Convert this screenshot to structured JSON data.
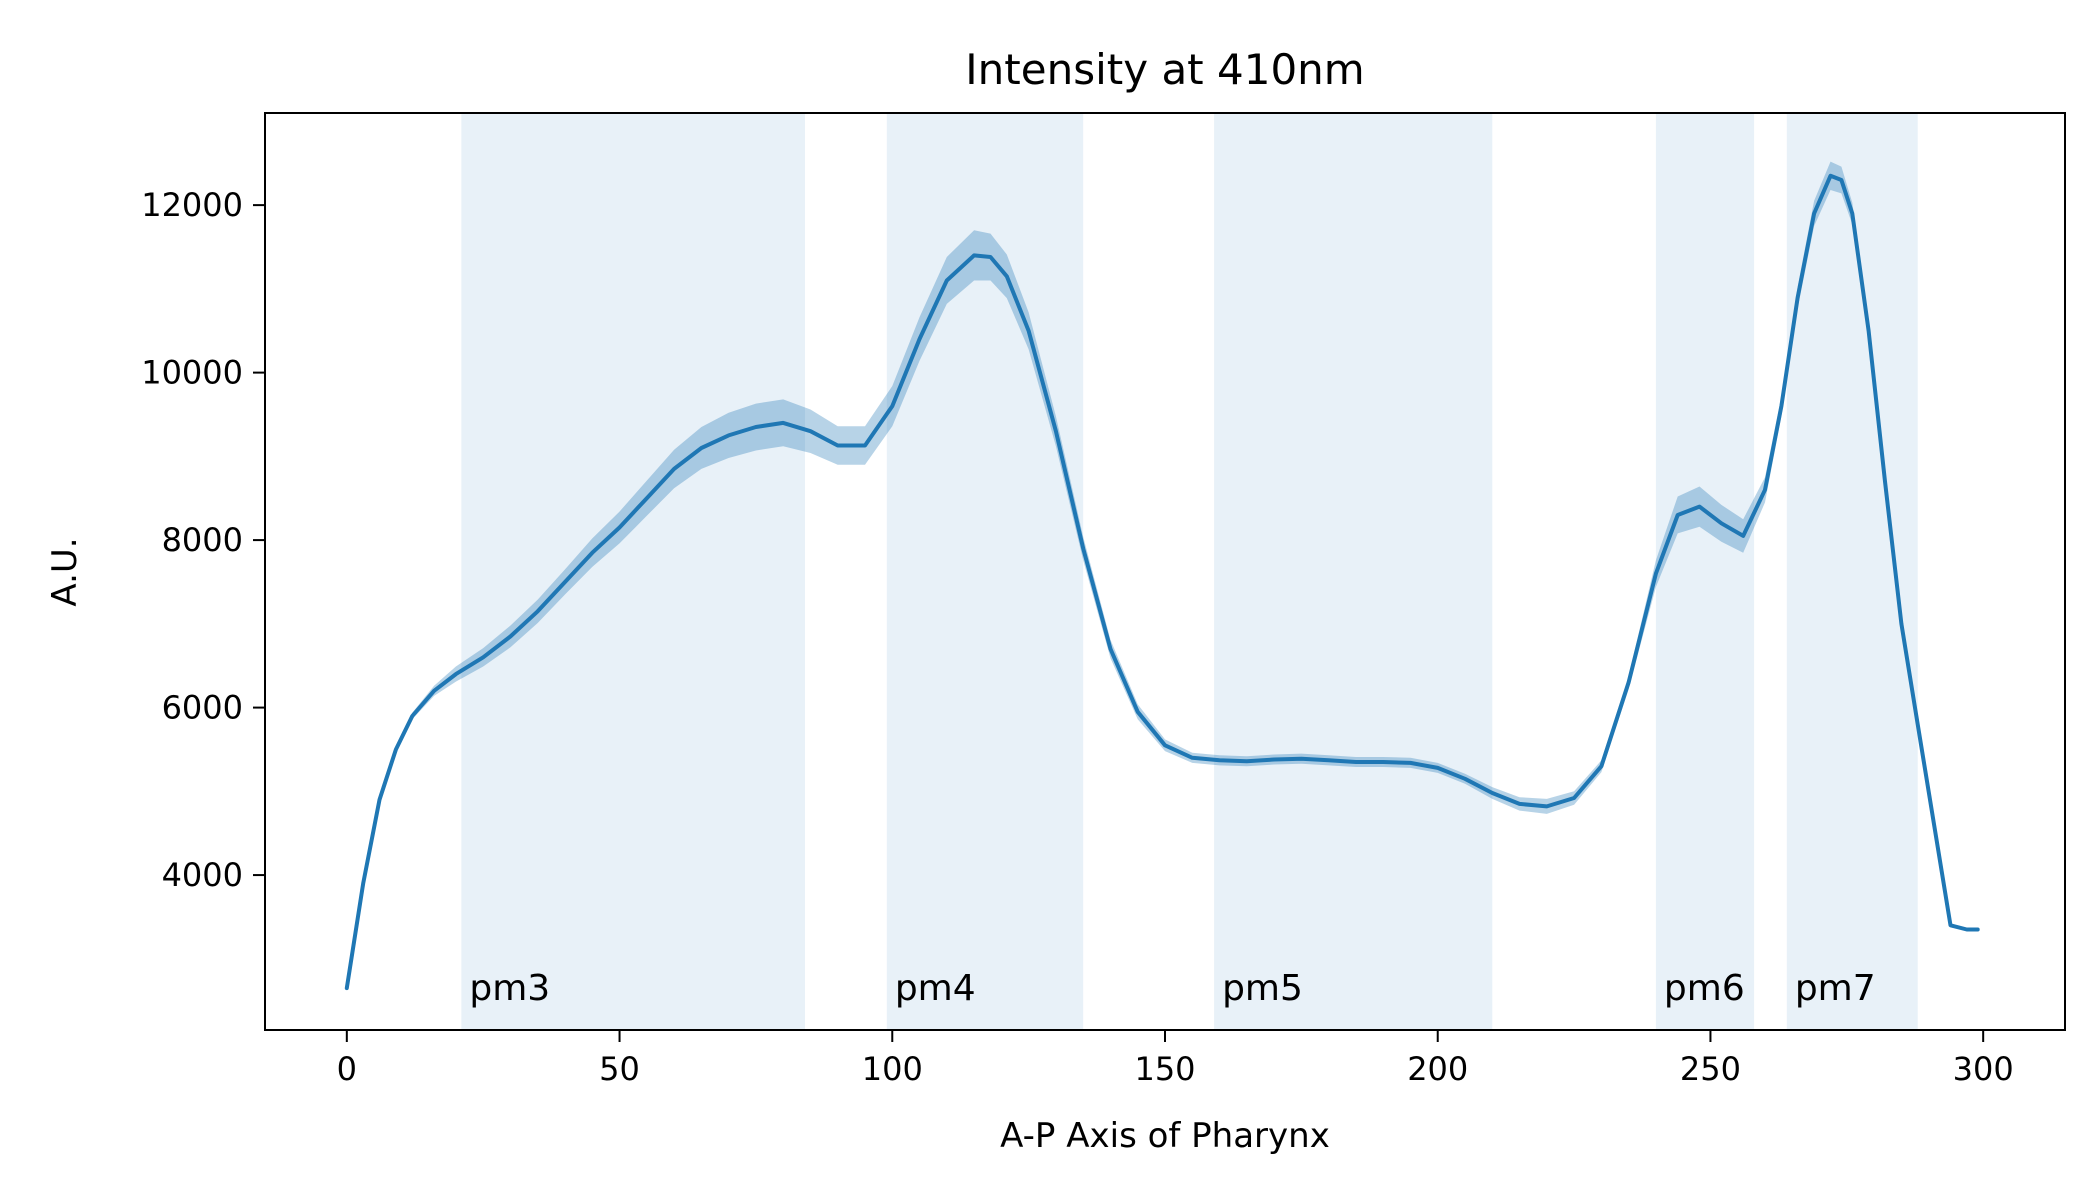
{
  "chart_data": {
    "type": "line",
    "title": "Intensity at 410nm",
    "xlabel": "A-P Axis of Pharynx",
    "ylabel": "A.U.",
    "xlim": [
      -15,
      315
    ],
    "ylim": [
      2150,
      13100
    ],
    "x_ticks": [
      0,
      50,
      100,
      150,
      200,
      250,
      300
    ],
    "y_ticks": [
      4000,
      6000,
      8000,
      10000,
      12000
    ],
    "grid": false,
    "line_color": "#1f77b4",
    "band_color": "#1f77b4",
    "region_color": "#e8f1f8",
    "regions": [
      {
        "label": "pm3",
        "start": 21,
        "end": 84
      },
      {
        "label": "pm4",
        "start": 99,
        "end": 135
      },
      {
        "label": "pm5",
        "start": 159,
        "end": 210
      },
      {
        "label": "pm6",
        "start": 240,
        "end": 258
      },
      {
        "label": "pm7",
        "start": 264,
        "end": 288
      }
    ],
    "series": [
      {
        "x": [
          0,
          3,
          6,
          9,
          12,
          16,
          20,
          25,
          30,
          35,
          40,
          45,
          50,
          55,
          60,
          65,
          70,
          75,
          80,
          85,
          90,
          95,
          100,
          105,
          110,
          115,
          118,
          121,
          125,
          130,
          135,
          140,
          145,
          150,
          155,
          160,
          165,
          170,
          175,
          180,
          185,
          190,
          195,
          200,
          205,
          210,
          215,
          220,
          225,
          230,
          235,
          240,
          244,
          248,
          252,
          256,
          260,
          263,
          266,
          269,
          272,
          274,
          276,
          279,
          282,
          285,
          288,
          291,
          294,
          297,
          299
        ],
        "y": [
          2650,
          3900,
          4900,
          5500,
          5900,
          6200,
          6400,
          6600,
          6850,
          7150,
          7500,
          7850,
          8150,
          8500,
          8850,
          9100,
          9250,
          9350,
          9400,
          9300,
          9130,
          9130,
          9600,
          10400,
          11100,
          11400,
          11380,
          11150,
          10500,
          9300,
          7900,
          6700,
          5950,
          5550,
          5400,
          5370,
          5360,
          5380,
          5390,
          5370,
          5350,
          5350,
          5340,
          5280,
          5150,
          4980,
          4850,
          4820,
          4920,
          5300,
          6300,
          7600,
          8300,
          8400,
          8200,
          8050,
          8600,
          9600,
          10900,
          11900,
          12350,
          12300,
          11900,
          10500,
          8700,
          7000,
          5800,
          4600,
          3400,
          3350,
          3350
        ],
        "err": [
          0,
          10,
          20,
          30,
          40,
          60,
          90,
          110,
          130,
          140,
          150,
          170,
          190,
          210,
          230,
          250,
          270,
          280,
          280,
          260,
          230,
          230,
          240,
          260,
          280,
          300,
          280,
          260,
          220,
          180,
          140,
          110,
          90,
          70,
          60,
          60,
          60,
          60,
          60,
          60,
          60,
          60,
          60,
          60,
          60,
          70,
          80,
          90,
          80,
          70,
          80,
          160,
          220,
          240,
          220,
          200,
          150,
          120,
          130,
          150,
          170,
          160,
          130,
          100,
          80,
          60,
          40,
          20,
          10,
          10,
          0
        ]
      }
    ]
  }
}
